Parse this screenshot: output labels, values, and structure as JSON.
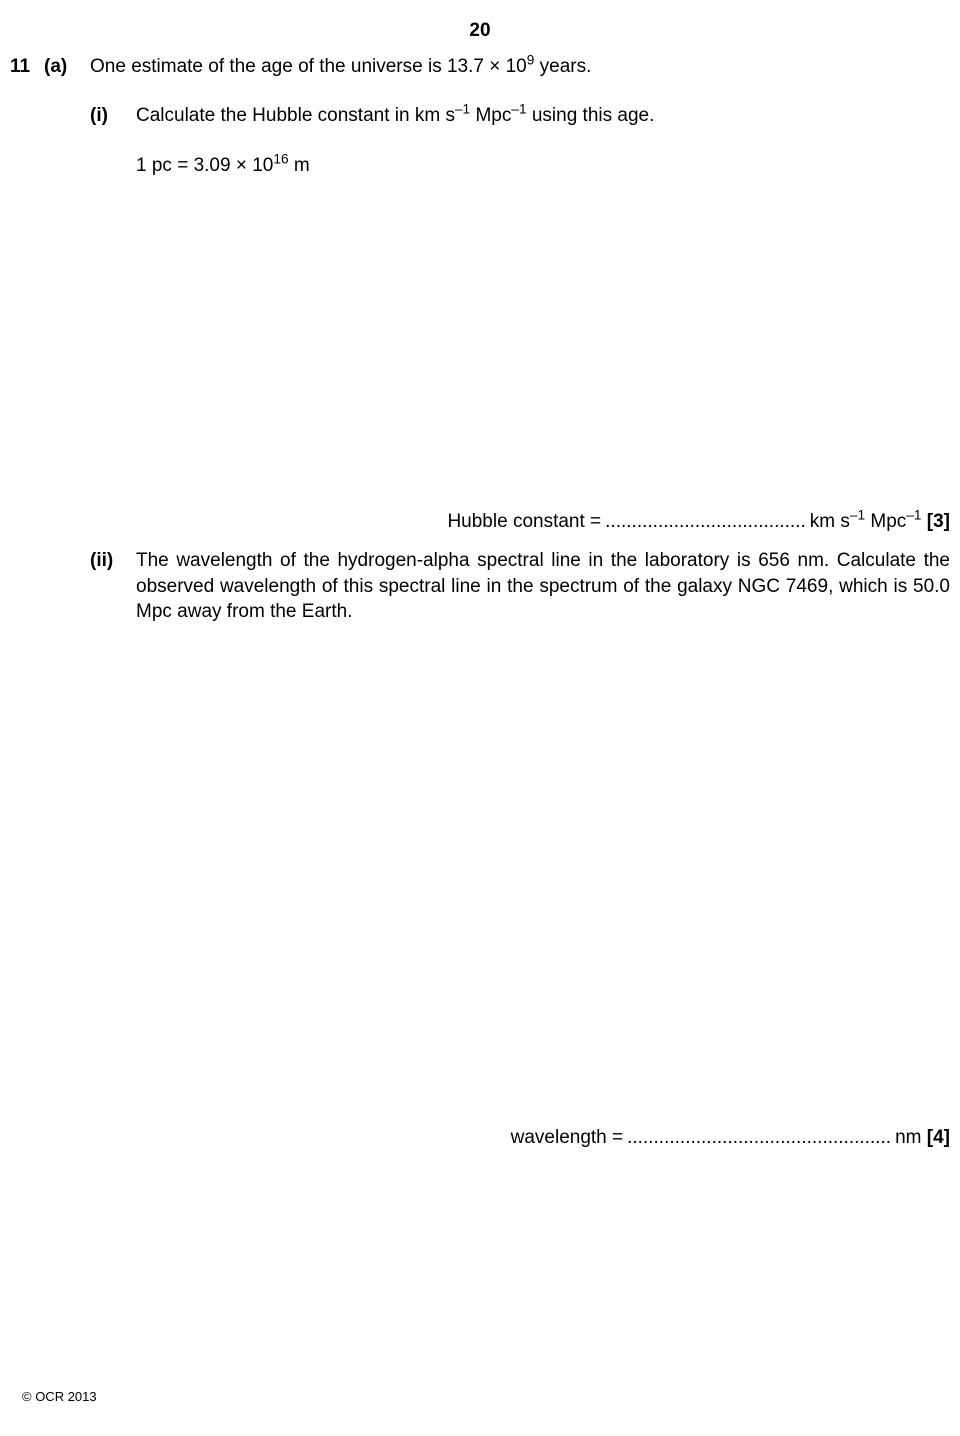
{
  "page_number": "20",
  "question_number": "11",
  "part_a_label": "(a)",
  "q_a_intro_pre": "One estimate of the age of the universe is 13.7 × 10",
  "q_a_intro_sup": "9",
  "q_a_intro_post": " years.",
  "sub_i_label": "(i)",
  "q_i_pre": "Calculate the Hubble constant in km s",
  "q_i_sup1": "–1",
  "q_i_mid": " Mpc",
  "q_i_sup2": "–1",
  "q_i_post": " using this age.",
  "q_i_given_pre": "1 pc = 3.09 × 10",
  "q_i_given_sup": "16",
  "q_i_given_post": " m",
  "ans_i_label": "Hubble constant = ",
  "ans_i_dots": "......................................",
  "ans_i_unit_pre": " km s",
  "ans_i_unit_sup1": "–1",
  "ans_i_unit_mid": " Mpc",
  "ans_i_unit_sup2": "–1",
  "ans_i_marks": " [3]",
  "sub_ii_label": "(ii)",
  "q_ii_text": "The wavelength of the hydrogen-alpha spectral line in the laboratory is 656 nm. Calculate the observed wavelength of this spectral line in the spectrum of the galaxy NGC 7469, which is 50.0 Mpc away from the Earth.",
  "ans_ii_label": "wavelength = ",
  "ans_ii_dots": "..................................................",
  "ans_ii_unit": "  nm ",
  "ans_ii_marks": "[4]",
  "copyright": "© OCR 2013"
}
